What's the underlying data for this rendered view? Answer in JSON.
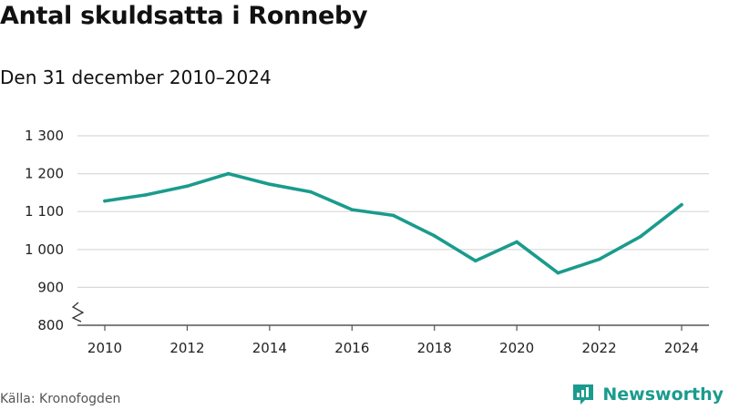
{
  "chart_data": {
    "type": "line",
    "title": "Antal skuldsatta i Ronneby",
    "subtitle": "Den 31 december 2010–2024",
    "xlabel": "",
    "ylabel": "",
    "x": [
      2010,
      2011,
      2012,
      2013,
      2014,
      2015,
      2016,
      2017,
      2018,
      2019,
      2020,
      2021,
      2022,
      2023,
      2024
    ],
    "series": [
      {
        "name": "Antal skuldsatta",
        "values": [
          1128,
          1144,
          1167,
          1200,
          1172,
          1152,
          1105,
          1090,
          1036,
          970,
          1020,
          938,
          974,
          1034,
          1118
        ]
      }
    ],
    "ylim": [
      800,
      1300
    ],
    "yticks": [
      800,
      900,
      1000,
      1100,
      1200,
      1300
    ],
    "ytick_labels": [
      "800",
      "900",
      "1 000",
      "1 100",
      "1 200",
      "1 300"
    ],
    "xticks": [
      2010,
      2012,
      2014,
      2016,
      2018,
      2020,
      2022,
      2024
    ],
    "xtick_labels": [
      "2010",
      "2012",
      "2014",
      "2016",
      "2018",
      "2020",
      "2022",
      "2024"
    ],
    "axis_break": true,
    "grid": true,
    "line_color": "#1a9b8d",
    "grid_color": "#d9d9d9"
  },
  "footer": {
    "source": "Källa: Kronofogden",
    "brand": "Newsworthy",
    "brand_color": "#1a9b8d"
  }
}
